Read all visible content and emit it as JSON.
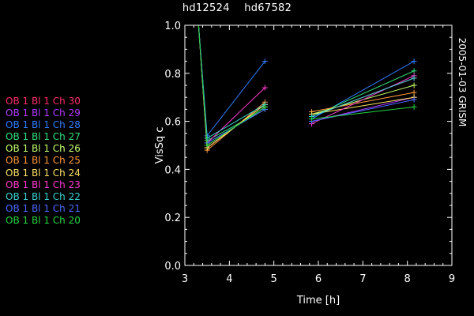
{
  "header": {
    "star_left": "hd12524",
    "star_right": "hd67582"
  },
  "side_label": "2005-01-03 GRISM",
  "colors": {
    "background": "#000000",
    "axes": "#ffffff"
  },
  "chart_data": {
    "type": "line",
    "xlabel": "Time [h]",
    "ylabel": "VisSq c",
    "xlim": [
      3,
      9
    ],
    "ylim": [
      0.0,
      1.0
    ],
    "xticks": [
      "3",
      "4",
      "5",
      "6",
      "7",
      "8",
      "9"
    ],
    "yticks": [
      "0.0",
      "0.2",
      "0.4",
      "0.6",
      "0.8",
      "1.0"
    ],
    "x": [
      3.3,
      3.5,
      4.8,
      5.85,
      8.15
    ],
    "segments_break_after_index": 2,
    "legend_position": "left",
    "series": [
      {
        "name": "OB 1 Bl 1 Ch 30",
        "color": "#ff2d6e",
        "values": [
          1.02,
          0.49,
          0.67,
          0.62,
          0.78
        ]
      },
      {
        "name": "OB 1 Bl 1 Ch 29",
        "color": "#b23cff",
        "values": [
          1.02,
          0.5,
          0.66,
          0.6,
          0.7
        ]
      },
      {
        "name": "OB 1 Bl 1 Ch 28",
        "color": "#2f7dff",
        "values": [
          1.02,
          0.54,
          0.85,
          0.61,
          0.85
        ]
      },
      {
        "name": "OB 1 Bl 1 Ch 27",
        "color": "#33e07a",
        "values": [
          1.02,
          0.52,
          0.65,
          0.62,
          0.81
        ]
      },
      {
        "name": "OB 1 Bl 1 Ch 26",
        "color": "#c6ff6b",
        "values": [
          1.02,
          0.5,
          0.66,
          0.63,
          0.75
        ]
      },
      {
        "name": "OB 1 Bl 1 Ch 25",
        "color": "#ff9a3c",
        "values": [
          1.02,
          0.48,
          0.68,
          0.64,
          0.72
        ]
      },
      {
        "name": "OB 1 Bl 1 Ch 24",
        "color": "#ffe066",
        "values": [
          1.02,
          0.49,
          0.67,
          0.63,
          0.7
        ]
      },
      {
        "name": "OB 1 Bl 1 Ch 23",
        "color": "#ff3ccf",
        "values": [
          1.02,
          0.51,
          0.74,
          0.59,
          0.79
        ]
      },
      {
        "name": "OB 1 Bl 1 Ch 22",
        "color": "#39d3d3",
        "values": [
          1.02,
          0.53,
          0.67,
          0.62,
          0.78
        ]
      },
      {
        "name": "OB 1 Bl 1 Ch 21",
        "color": "#4a6bff",
        "values": [
          1.02,
          0.51,
          0.65,
          0.6,
          0.69
        ]
      },
      {
        "name": "OB 1 Bl 1 Ch 20",
        "color": "#22d640",
        "values": [
          1.02,
          0.5,
          0.66,
          0.61,
          0.66
        ]
      }
    ]
  }
}
